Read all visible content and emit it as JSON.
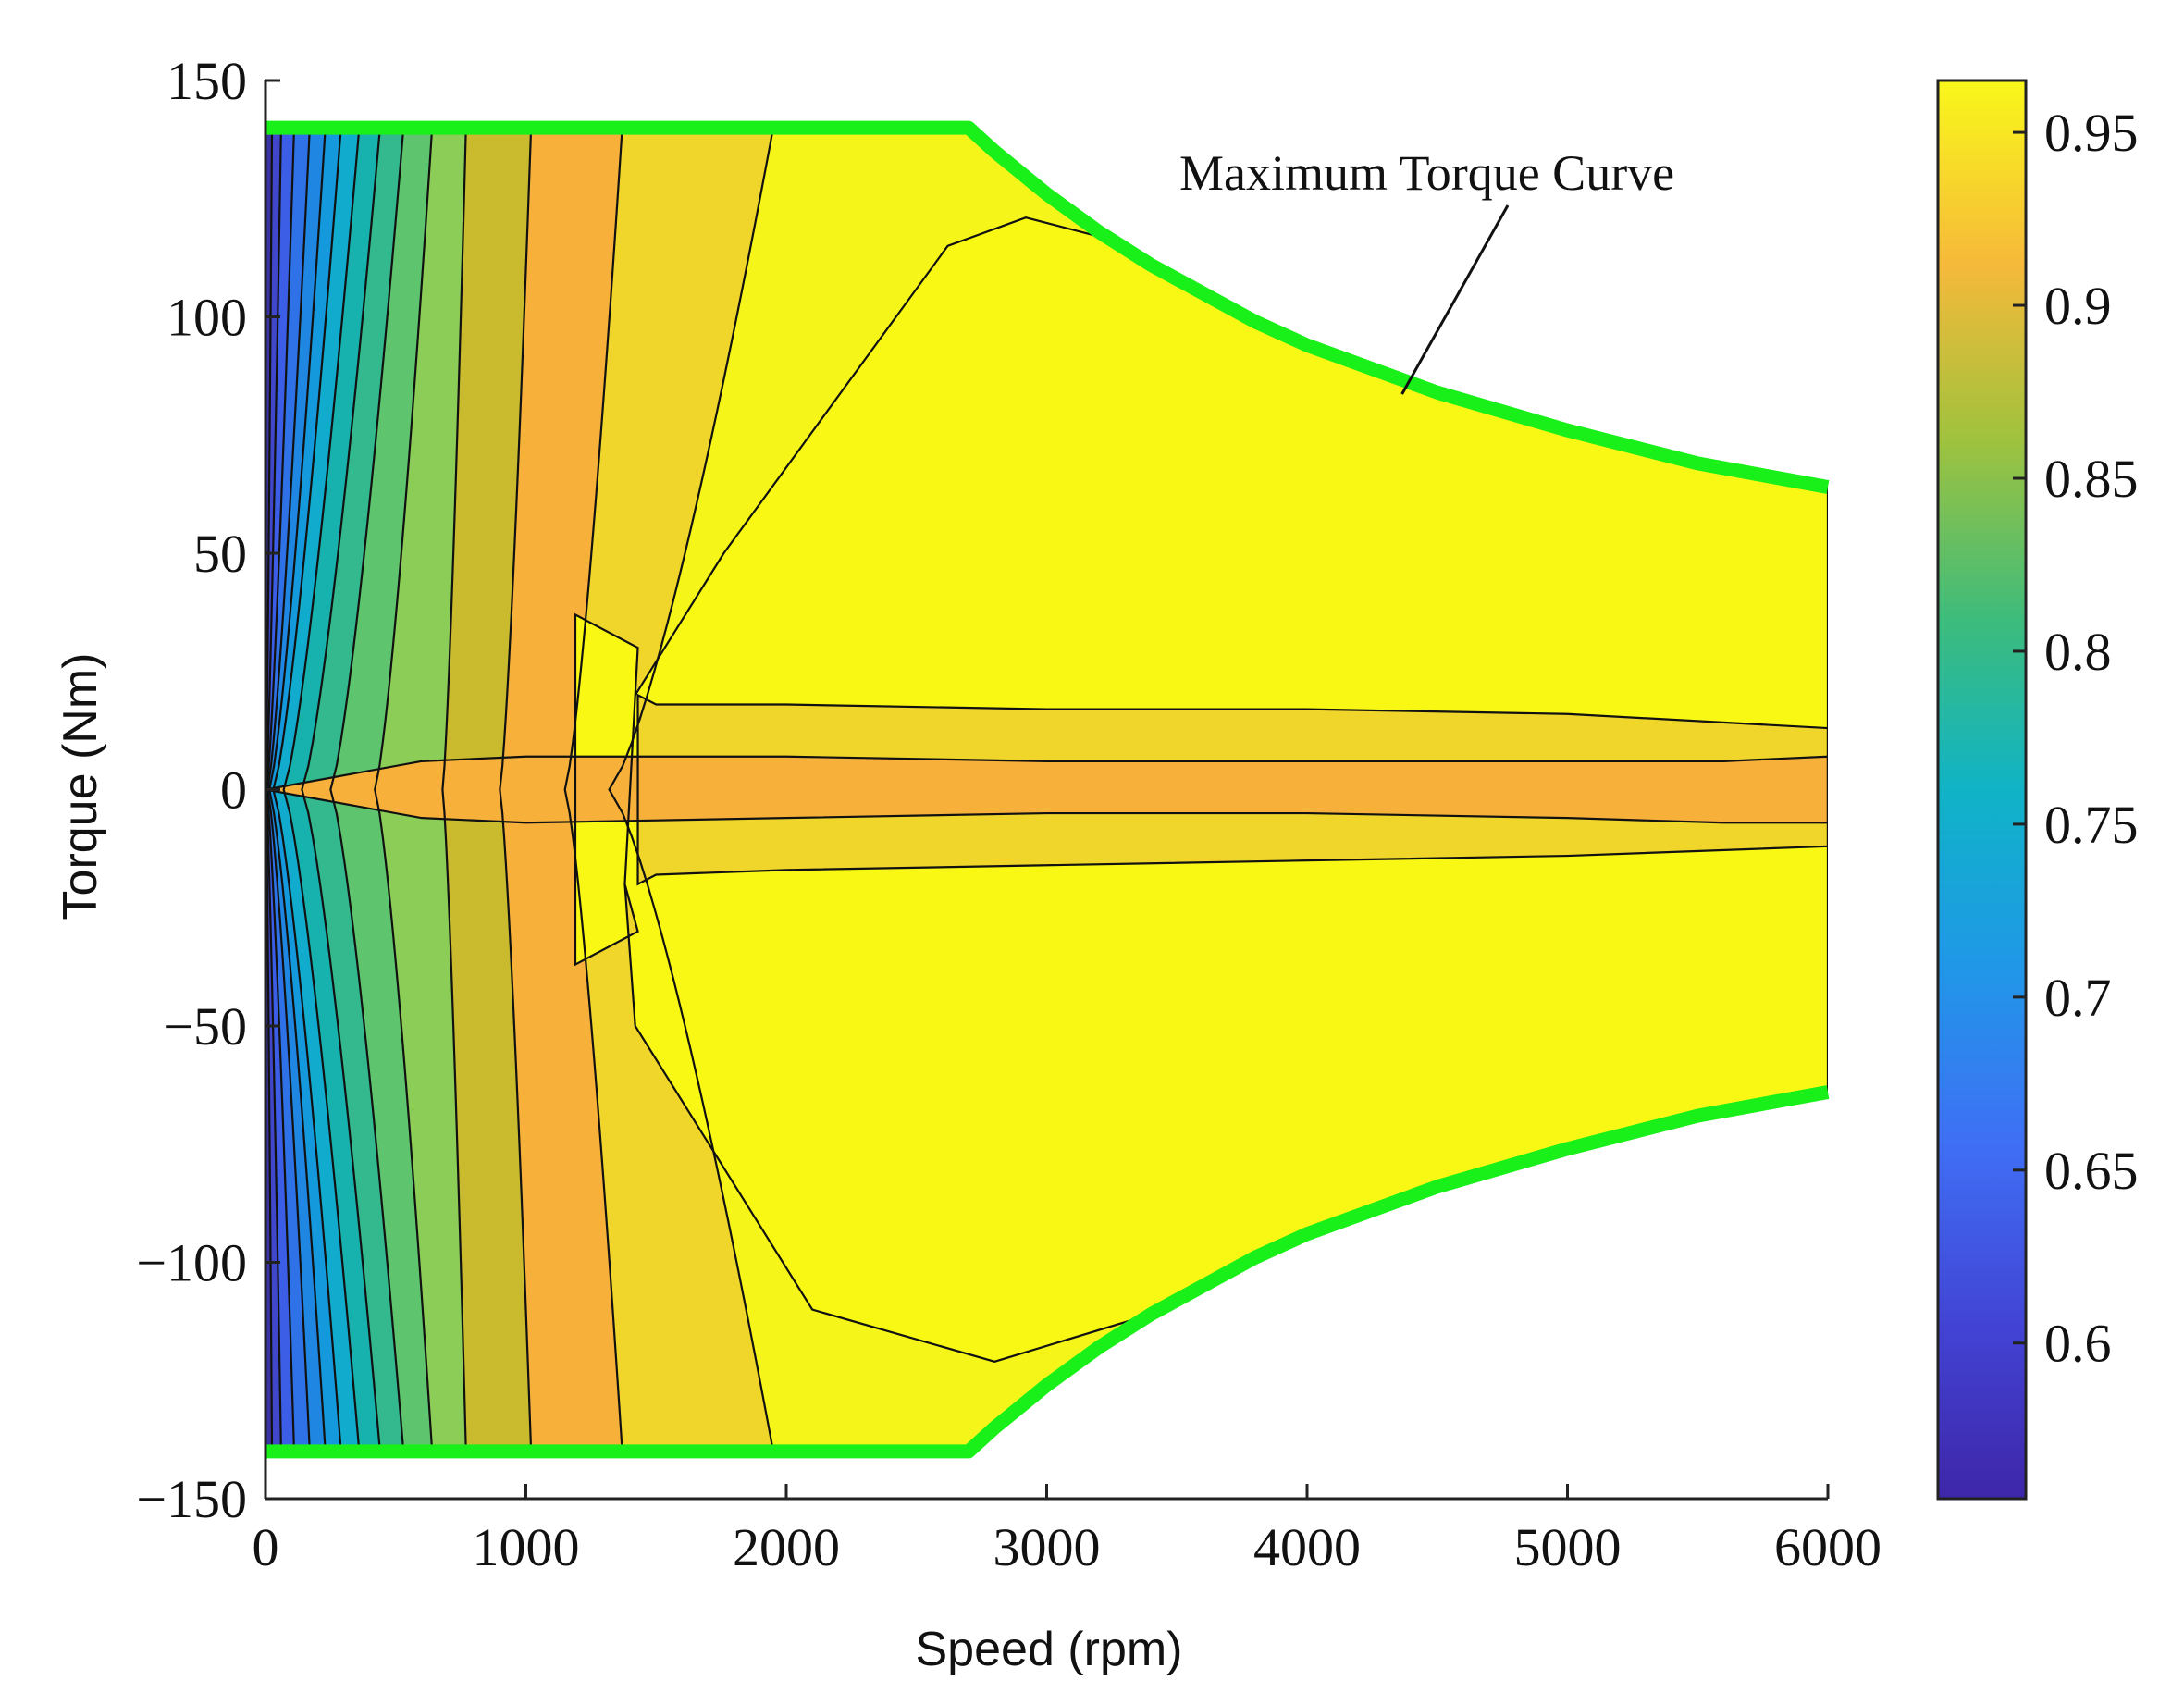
{
  "chart_data": {
    "type": "contour",
    "xlabel": "Speed (rpm)",
    "ylabel": "Torque (Nm)",
    "xlim": [
      0,
      6000
    ],
    "ylim": [
      -150,
      150
    ],
    "x_ticks": [
      0,
      1000,
      2000,
      3000,
      4000,
      5000,
      6000
    ],
    "y_ticks": [
      -150,
      -100,
      -50,
      0,
      50,
      100,
      150
    ],
    "colorbar": {
      "range": [
        0.555,
        0.965
      ],
      "ticks": [
        0.6,
        0.65,
        0.7,
        0.75,
        0.8,
        0.85,
        0.9,
        0.95
      ],
      "colormap": "parula"
    },
    "annotation": "Maximum Torque Curve",
    "max_torque_curve": {
      "color": "#19f019",
      "x": [
        0,
        2700,
        2800,
        3000,
        3200,
        3400,
        3600,
        3800,
        4000,
        4500,
        5000,
        5500,
        6000
      ],
      "y": [
        140,
        140,
        135,
        126,
        118,
        111,
        105,
        99,
        94,
        84,
        76,
        69,
        64
      ]
    },
    "levels": [
      {
        "value": 0.945,
        "color": "#f5f519"
      },
      {
        "value": 0.92,
        "color": "#f0d62b"
      },
      {
        "value": 0.895,
        "color": "#f7b13a"
      },
      {
        "value": 0.87,
        "color": "#c9bb2d"
      },
      {
        "value": 0.845,
        "color": "#8ccd58"
      },
      {
        "value": 0.82,
        "color": "#5ec46e"
      },
      {
        "value": 0.795,
        "color": "#33b98d"
      },
      {
        "value": 0.77,
        "color": "#17b2ad"
      },
      {
        "value": 0.745,
        "color": "#10abcd"
      },
      {
        "value": 0.72,
        "color": "#1499dd"
      },
      {
        "value": 0.695,
        "color": "#1f87e2"
      },
      {
        "value": 0.67,
        "color": "#2f72e8"
      },
      {
        "value": 0.645,
        "color": "#3c5ee6"
      },
      {
        "value": 0.62,
        "color": "#4047cb"
      },
      {
        "value": 0.595,
        "color": "#3a33a6"
      }
    ],
    "line_speed_at_max_torque_rpm": [
      1950,
      1370,
      1020,
      770,
      640,
      530,
      440,
      360,
      290,
      230,
      170,
      110,
      60,
      25
    ],
    "line_speed_at_zero_torque_rpm": [
      1320,
      1150,
      900,
      680,
      420,
      250,
      140,
      70,
      30,
      15,
      8,
      4,
      2,
      1
    ],
    "high_efficiency_region": {
      "x": [
        1190,
        1430,
        1380,
        1420,
        1760,
        2620,
        2920,
        3200,
        3400,
        4000,
        4500,
        5000,
        5500,
        6000,
        6000,
        5500,
        5000,
        4500,
        4000,
        3400,
        2800,
        2100,
        1420,
        1380,
        1430,
        1190
      ],
      "y": [
        -37,
        -30,
        -20,
        20,
        50,
        115,
        121,
        117,
        111,
        94,
        84,
        76,
        69,
        64,
        -64,
        -69,
        -76,
        -84,
        -94,
        -111,
        -121,
        -110,
        -50,
        -20,
        30,
        37
      ]
    },
    "high_efficiency_inner_band": {
      "x": [
        1430,
        1500,
        2000,
        3000,
        4000,
        5000,
        6000,
        6000,
        5000,
        4000,
        3000,
        2000,
        1500,
        1430
      ],
      "y": [
        20,
        18,
        18,
        17,
        17,
        16,
        13,
        -12,
        -14,
        -15,
        -16,
        -17,
        -18,
        -20
      ]
    },
    "low_torque_band": {
      "x": [
        0,
        600,
        1000,
        2000,
        3000,
        4000,
        5000,
        5600,
        6000,
        6000,
        5600,
        5000,
        4000,
        3000,
        2000,
        1000,
        600,
        0
      ],
      "y": [
        0,
        6,
        7,
        7,
        6,
        6,
        6,
        6,
        7,
        -7,
        -7,
        -6,
        -5,
        -5,
        -6,
        -7,
        -6,
        0
      ]
    }
  }
}
